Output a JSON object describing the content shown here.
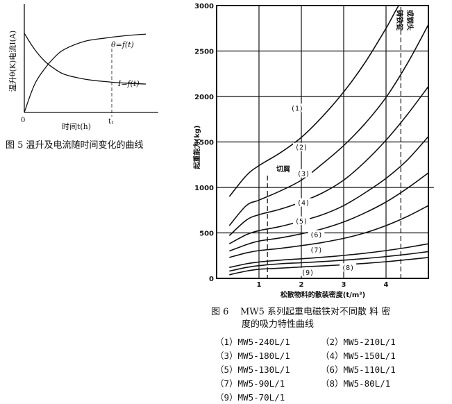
{
  "figure5": {
    "caption": "图 5  温升及电流随时间变化的曲线",
    "ylabel": "温升θ(K)电流I(A)",
    "xlabel": "时间t(h)",
    "origin_label": "0",
    "t1_label": "t₁",
    "curve_theta_label": "θ=f(t)",
    "curve_current_label": "I=f(t)"
  },
  "figure6": {
    "caption_number": "图 6",
    "caption_line1": "MW5 系列起重电磁铁对不同散 料 密",
    "caption_line2": "度的吸力特性曲线",
    "annotations": {
      "scrap": "切屑",
      "iron_ingot_1": "铸铁锭",
      "iron_ingot_2": "或钢头"
    },
    "legend": [
      "（1）MW5-240L/1",
      "（2）MW5-210L/1",
      "（3）MW5-180L/1",
      "（4）MW5-150L/1",
      "（5）MW5-130L/1",
      "（6）MW5-110L/1",
      "（7）MW5-90L/1",
      "（8）MW5-80L/1",
      "（9）MW5-70L/1"
    ]
  },
  "chart_data": [
    {
      "type": "line",
      "title": "",
      "xlabel": "时间t(h)",
      "ylabel": "温升θ(K)电流I(A)",
      "x_ticks": [
        "0",
        "t₁"
      ],
      "series": [
        {
          "name": "θ=f(t)",
          "x": [
            0,
            0.5,
            1,
            1.5,
            2,
            3,
            4,
            5,
            6
          ],
          "y": [
            0.0,
            0.35,
            0.55,
            0.7,
            0.8,
            0.9,
            0.94,
            0.97,
            0.99
          ]
        },
        {
          "name": "I=f(t)",
          "x": [
            0,
            0.5,
            1,
            1.5,
            2,
            3,
            4,
            5,
            6
          ],
          "y": [
            1.0,
            0.8,
            0.65,
            0.55,
            0.48,
            0.42,
            0.39,
            0.37,
            0.36
          ]
        }
      ],
      "grid": false
    },
    {
      "type": "line",
      "title": "",
      "xlabel": "松散物料的散装密度(t/m³)",
      "ylabel": "起重能力(kg)",
      "xlim": [
        0,
        5
      ],
      "ylim": [
        0,
        3000
      ],
      "x_ticks": [
        1,
        2,
        3,
        4
      ],
      "y_ticks": [
        0,
        500,
        1000,
        1500,
        2000,
        2500,
        3000
      ],
      "y_tick_labels": [
        "0",
        "500",
        "1000",
        "1500",
        "2000",
        "2500",
        "3000"
      ],
      "grid": true,
      "reference_lines": [
        {
          "x": 1.2,
          "label": "切屑"
        },
        {
          "x": 4.35,
          "label": "铸铁锭或钢头"
        }
      ],
      "series": [
        {
          "name": "(1)",
          "x": [
            0.3,
            0.7,
            1.0,
            1.5,
            2.0,
            2.5,
            3.0,
            3.5,
            4.0,
            4.3,
            4.6
          ],
          "y": [
            900,
            1130,
            1240,
            1380,
            1550,
            1780,
            2050,
            2370,
            2750,
            3000,
            3180
          ]
        },
        {
          "name": "(2)",
          "x": [
            0.3,
            0.7,
            1.0,
            1.5,
            2.0,
            2.5,
            3.0,
            3.5,
            4.0,
            4.5,
            5.0
          ],
          "y": [
            580,
            800,
            860,
            960,
            1080,
            1260,
            1460,
            1700,
            1990,
            2360,
            2790
          ]
        },
        {
          "name": "(3)",
          "x": [
            0.3,
            0.7,
            1.0,
            1.5,
            2.0,
            2.5,
            3.0,
            3.5,
            4.0,
            4.5,
            5.0
          ],
          "y": [
            470,
            640,
            700,
            760,
            840,
            940,
            1080,
            1280,
            1520,
            1800,
            2110
          ]
        },
        {
          "name": "(4)",
          "x": [
            0.3,
            0.7,
            1.0,
            1.5,
            2.0,
            2.5,
            3.0,
            3.5,
            4.0,
            4.5,
            5.0
          ],
          "y": [
            380,
            480,
            525,
            570,
            630,
            700,
            800,
            940,
            1100,
            1300,
            1560
          ]
        },
        {
          "name": "(5)",
          "x": [
            0.3,
            0.7,
            1.0,
            1.5,
            2.0,
            2.5,
            3.0,
            3.5,
            4.0,
            4.5,
            5.0
          ],
          "y": [
            300,
            370,
            410,
            445,
            490,
            545,
            620,
            720,
            840,
            990,
            1160
          ]
        },
        {
          "name": "(6)",
          "x": [
            0.3,
            0.7,
            1.0,
            1.5,
            2.0,
            2.5,
            3.0,
            3.5,
            4.0,
            4.5,
            5.0
          ],
          "y": [
            230,
            280,
            305,
            330,
            360,
            395,
            440,
            500,
            580,
            680,
            800
          ]
        },
        {
          "name": "(7)",
          "x": [
            0.3,
            0.7,
            1.0,
            1.5,
            2.0,
            2.5,
            3.0,
            3.5,
            4.0,
            4.5,
            5.0
          ],
          "y": [
            120,
            160,
            180,
            200,
            215,
            232,
            252,
            276,
            305,
            340,
            380
          ]
        },
        {
          "name": "(8)",
          "x": [
            0.3,
            0.7,
            1.0,
            1.5,
            2.0,
            2.5,
            3.0,
            3.5,
            4.0,
            4.5,
            5.0
          ],
          "y": [
            80,
            120,
            140,
            160,
            172,
            185,
            200,
            218,
            240,
            265,
            295
          ]
        },
        {
          "name": "(9)",
          "x": [
            0.3,
            0.7,
            1.0,
            1.5,
            2.0,
            2.5,
            3.0,
            3.5,
            4.0,
            4.5,
            5.0
          ],
          "y": [
            40,
            80,
            100,
            112,
            125,
            137,
            150,
            165,
            183,
            205,
            230
          ]
        }
      ],
      "curve_label_positions": [
        {
          "label": "(1)",
          "x": 1.9,
          "y": 1860
        },
        {
          "label": "(2)",
          "x": 2.0,
          "y": 1430
        },
        {
          "label": "(3)",
          "x": 2.05,
          "y": 1140
        },
        {
          "label": "(4)",
          "x": 2.05,
          "y": 820
        },
        {
          "label": "(5)",
          "x": 2.0,
          "y": 620
        },
        {
          "label": "(6)",
          "x": 2.35,
          "y": 470
        },
        {
          "label": "(7)",
          "x": 2.35,
          "y": 300
        },
        {
          "label": "(8)",
          "x": 3.1,
          "y": 105
        },
        {
          "label": "(9)",
          "x": 2.15,
          "y": 55
        }
      ]
    }
  ]
}
